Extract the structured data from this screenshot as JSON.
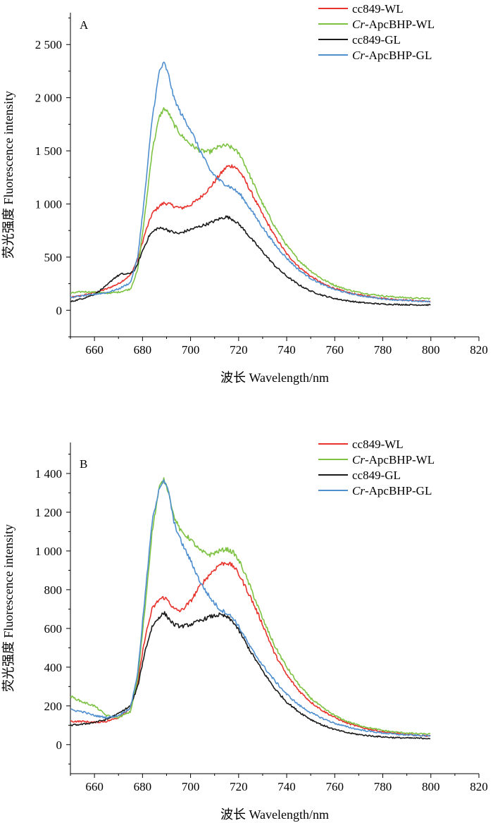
{
  "chart_data": [
    {
      "type": "line",
      "panel_label": "A",
      "xlabel": "波长 Wavelength/nm",
      "ylabel": "荧光强度 Fluorescence intensity",
      "xlim": [
        650,
        820
      ],
      "ylim": [
        -250,
        2800
      ],
      "xticks": [
        660,
        680,
        700,
        720,
        740,
        760,
        780,
        800,
        820
      ],
      "yticks": [
        0,
        500,
        1000,
        1500,
        2000,
        2500
      ],
      "ytick_labels": [
        "0",
        "500",
        "1 000",
        "1 500",
        "2 000",
        "2 500"
      ],
      "legend_position": "top-right",
      "series": [
        {
          "name": "cc849-WL",
          "name_prefix": "",
          "name_suffix": "cc849-WL",
          "color": "#e8322c",
          "x": [
            650,
            655,
            660,
            665,
            670,
            675,
            678,
            681,
            684,
            687,
            689,
            691,
            693,
            696,
            700,
            704,
            708,
            712,
            715,
            718,
            721,
            725,
            730,
            735,
            740,
            745,
            750,
            755,
            760,
            765,
            770,
            775,
            780,
            785,
            790,
            795,
            800
          ],
          "y": [
            120,
            140,
            165,
            200,
            250,
            330,
            480,
            720,
            910,
            980,
            1010,
            1000,
            980,
            960,
            990,
            1060,
            1150,
            1270,
            1350,
            1360,
            1290,
            1120,
            900,
            700,
            530,
            410,
            320,
            250,
            205,
            170,
            145,
            128,
            112,
            102,
            95,
            88,
            82
          ]
        },
        {
          "name": "Cr-ApcBHP-WL",
          "name_prefix": "Cr",
          "name_suffix": "-ApcBHP-WL",
          "color": "#7dc242",
          "x": [
            650,
            655,
            660,
            665,
            670,
            675,
            678,
            681,
            684,
            687,
            689,
            691,
            693,
            696,
            700,
            704,
            708,
            712,
            715,
            718,
            721,
            725,
            730,
            735,
            740,
            745,
            750,
            755,
            760,
            765,
            770,
            775,
            780,
            785,
            790,
            795,
            800
          ],
          "y": [
            160,
            175,
            170,
            160,
            170,
            200,
            380,
            900,
            1500,
            1820,
            1900,
            1850,
            1750,
            1650,
            1560,
            1500,
            1490,
            1540,
            1550,
            1520,
            1450,
            1250,
            1000,
            790,
            610,
            470,
            370,
            290,
            235,
            195,
            168,
            150,
            135,
            125,
            118,
            112,
            110
          ]
        },
        {
          "name": "cc849-GL",
          "name_prefix": "",
          "name_suffix": "cc849-GL",
          "color": "#1a1a1a",
          "x": [
            650,
            655,
            660,
            665,
            668,
            671,
            674,
            677,
            680,
            683,
            686,
            689,
            692,
            695,
            700,
            704,
            708,
            712,
            715,
            718,
            721,
            725,
            730,
            735,
            740,
            745,
            750,
            755,
            760,
            765,
            770,
            775,
            780,
            785,
            790,
            795,
            800
          ],
          "y": [
            80,
            110,
            150,
            230,
            300,
            340,
            340,
            380,
            560,
            710,
            770,
            770,
            740,
            720,
            760,
            790,
            820,
            860,
            880,
            850,
            790,
            680,
            550,
            420,
            320,
            240,
            180,
            140,
            110,
            90,
            75,
            65,
            58,
            55,
            52,
            50,
            50
          ]
        },
        {
          "name": "Cr-ApcBHP-GL",
          "name_prefix": "Cr",
          "name_suffix": "-ApcBHP-GL",
          "color": "#4f8fcf",
          "x": [
            650,
            655,
            660,
            665,
            670,
            675,
            678,
            681,
            684,
            687,
            689,
            691,
            693,
            696,
            700,
            704,
            708,
            712,
            715,
            718,
            721,
            725,
            730,
            735,
            740,
            745,
            750,
            755,
            760,
            765,
            770,
            775,
            780,
            785,
            790,
            795,
            800
          ],
          "y": [
            120,
            135,
            150,
            165,
            200,
            260,
            500,
            1100,
            1800,
            2250,
            2330,
            2200,
            2000,
            1850,
            1700,
            1500,
            1320,
            1220,
            1180,
            1140,
            1080,
            950,
            780,
            620,
            490,
            380,
            300,
            240,
            195,
            165,
            140,
            122,
            108,
            98,
            90,
            85,
            80
          ]
        }
      ]
    },
    {
      "type": "line",
      "panel_label": "B",
      "xlabel": "波长 Wavelength/nm",
      "ylabel": "荧光强度 Fluorescence intensity",
      "xlim": [
        650,
        820
      ],
      "ylim": [
        -150,
        1560
      ],
      "xticks": [
        660,
        680,
        700,
        720,
        740,
        760,
        780,
        800,
        820
      ],
      "yticks": [
        0,
        200,
        400,
        600,
        800,
        1000,
        1200,
        1400
      ],
      "ytick_labels": [
        "0",
        "200",
        "400",
        "600",
        "800",
        "1 000",
        "1 200",
        "1 400"
      ],
      "legend_position": "top-right",
      "series": [
        {
          "name": "cc849-WL",
          "name_prefix": "",
          "name_suffix": "cc849-WL",
          "color": "#e8322c",
          "x": [
            650,
            655,
            660,
            665,
            670,
            675,
            678,
            681,
            684,
            687,
            689,
            691,
            693,
            696,
            700,
            704,
            708,
            712,
            715,
            718,
            721,
            725,
            730,
            735,
            740,
            745,
            750,
            755,
            760,
            765,
            770,
            775,
            780,
            785,
            790,
            795,
            800
          ],
          "y": [
            120,
            120,
            115,
            120,
            140,
            190,
            320,
            550,
            700,
            750,
            760,
            740,
            700,
            690,
            740,
            820,
            880,
            930,
            940,
            920,
            860,
            760,
            620,
            470,
            360,
            280,
            220,
            175,
            140,
            112,
            92,
            78,
            66,
            58,
            52,
            48,
            45
          ]
        },
        {
          "name": "Cr-ApcBHP-WL",
          "name_prefix": "Cr",
          "name_suffix": "-ApcBHP-WL",
          "color": "#7dc242",
          "x": [
            650,
            655,
            660,
            665,
            670,
            675,
            678,
            681,
            684,
            687,
            689,
            691,
            693,
            696,
            700,
            704,
            708,
            712,
            715,
            718,
            721,
            725,
            730,
            735,
            740,
            745,
            750,
            755,
            760,
            765,
            770,
            775,
            780,
            785,
            790,
            795,
            800
          ],
          "y": [
            250,
            220,
            200,
            150,
            140,
            170,
            340,
            700,
            1100,
            1330,
            1370,
            1300,
            1180,
            1100,
            1060,
            1000,
            980,
            1000,
            1010,
            990,
            930,
            810,
            650,
            510,
            400,
            310,
            240,
            190,
            150,
            120,
            100,
            85,
            73,
            65,
            60,
            56,
            55
          ]
        },
        {
          "name": "cc849-GL",
          "name_prefix": "",
          "name_suffix": "cc849-GL",
          "color": "#1a1a1a",
          "x": [
            650,
            655,
            660,
            665,
            670,
            675,
            678,
            681,
            684,
            687,
            689,
            691,
            693,
            696,
            700,
            704,
            708,
            712,
            715,
            718,
            721,
            725,
            730,
            735,
            740,
            745,
            750,
            755,
            760,
            765,
            770,
            775,
            780,
            785,
            790,
            795,
            800
          ],
          "y": [
            100,
            105,
            115,
            130,
            160,
            200,
            300,
            480,
            610,
            660,
            680,
            650,
            620,
            610,
            620,
            640,
            660,
            670,
            660,
            630,
            570,
            480,
            380,
            290,
            220,
            170,
            130,
            100,
            78,
            62,
            52,
            45,
            40,
            36,
            34,
            33,
            32
          ]
        },
        {
          "name": "Cr-ApcBHP-GL",
          "name_prefix": "Cr",
          "name_suffix": "-ApcBHP-GL",
          "color": "#4f8fcf",
          "x": [
            650,
            655,
            660,
            665,
            670,
            675,
            678,
            681,
            684,
            687,
            689,
            691,
            693,
            696,
            700,
            704,
            708,
            712,
            715,
            718,
            721,
            725,
            730,
            735,
            740,
            745,
            750,
            755,
            760,
            765,
            770,
            775,
            780,
            785,
            790,
            795,
            800
          ],
          "y": [
            180,
            170,
            150,
            140,
            150,
            190,
            370,
            760,
            1150,
            1330,
            1360,
            1300,
            1150,
            1050,
            950,
            840,
            760,
            700,
            680,
            650,
            590,
            500,
            410,
            330,
            260,
            205,
            165,
            135,
            110,
            92,
            78,
            68,
            60,
            54,
            50,
            47,
            45
          ]
        }
      ]
    }
  ]
}
